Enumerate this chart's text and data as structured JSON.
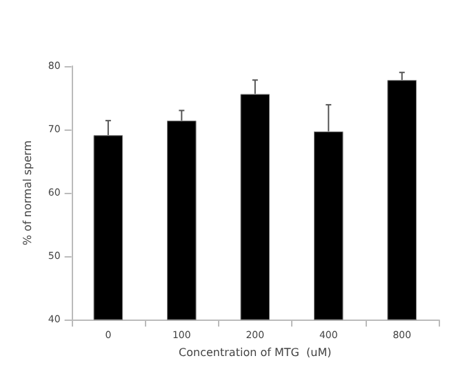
{
  "chart_data": {
    "type": "bar",
    "xlabel": "Concentration of MTG  (uM)",
    "ylabel": "% of normal sperm",
    "categories": [
      "0",
      "100",
      "200",
      "400",
      "800"
    ],
    "values": [
      69.1,
      71.4,
      75.6,
      69.7,
      77.8
    ],
    "errors": [
      [
        69.1,
        71.4
      ],
      [
        71.4,
        73.0
      ],
      [
        75.6,
        77.8
      ],
      [
        69.7,
        73.9
      ],
      [
        77.8,
        79.0
      ]
    ],
    "color": "#000000",
    "ylim": [
      40,
      80
    ],
    "yticks": [
      40,
      50,
      60,
      70,
      80
    ],
    "grid": false
  }
}
